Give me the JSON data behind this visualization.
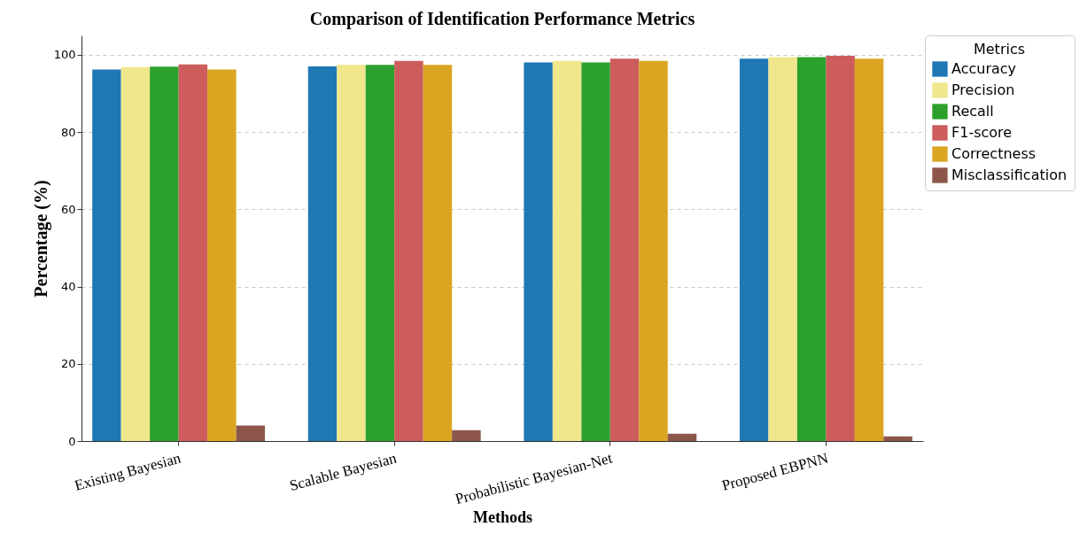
{
  "chart_data": {
    "type": "bar",
    "title": "Comparison of Identification Performance Metrics",
    "xlabel": "Methods",
    "ylabel": "Percentage (%)",
    "legend_title": "Metrics",
    "legend": "right",
    "grid": "y",
    "categories": [
      "Existing Bayesian",
      "Scalable Bayesian",
      "Probabilistic Bayesian-Net",
      "Proposed EBPNN"
    ],
    "series": [
      {
        "name": "Accuracy",
        "color": "#1f77b4",
        "values": [
          96.2,
          97.0,
          98.0,
          99.0
        ]
      },
      {
        "name": "Precision",
        "color": "#f0e68c",
        "values": [
          96.8,
          97.4,
          98.4,
          99.4
        ]
      },
      {
        "name": "Recall",
        "color": "#2ca02c",
        "values": [
          96.9,
          97.4,
          98.0,
          99.4
        ]
      },
      {
        "name": "F1-score",
        "color": "#cd5c5c",
        "values": [
          97.5,
          98.4,
          99.0,
          99.7
        ]
      },
      {
        "name": "Correctness",
        "color": "#daa520",
        "values": [
          96.2,
          97.4,
          98.4,
          99.0
        ]
      },
      {
        "name": "Misclassification",
        "color": "#8c564b",
        "values": [
          4.0,
          2.8,
          1.9,
          1.2
        ]
      }
    ],
    "ylim": [
      0,
      105
    ],
    "yticks": [
      0,
      20,
      40,
      60,
      80,
      100
    ]
  }
}
